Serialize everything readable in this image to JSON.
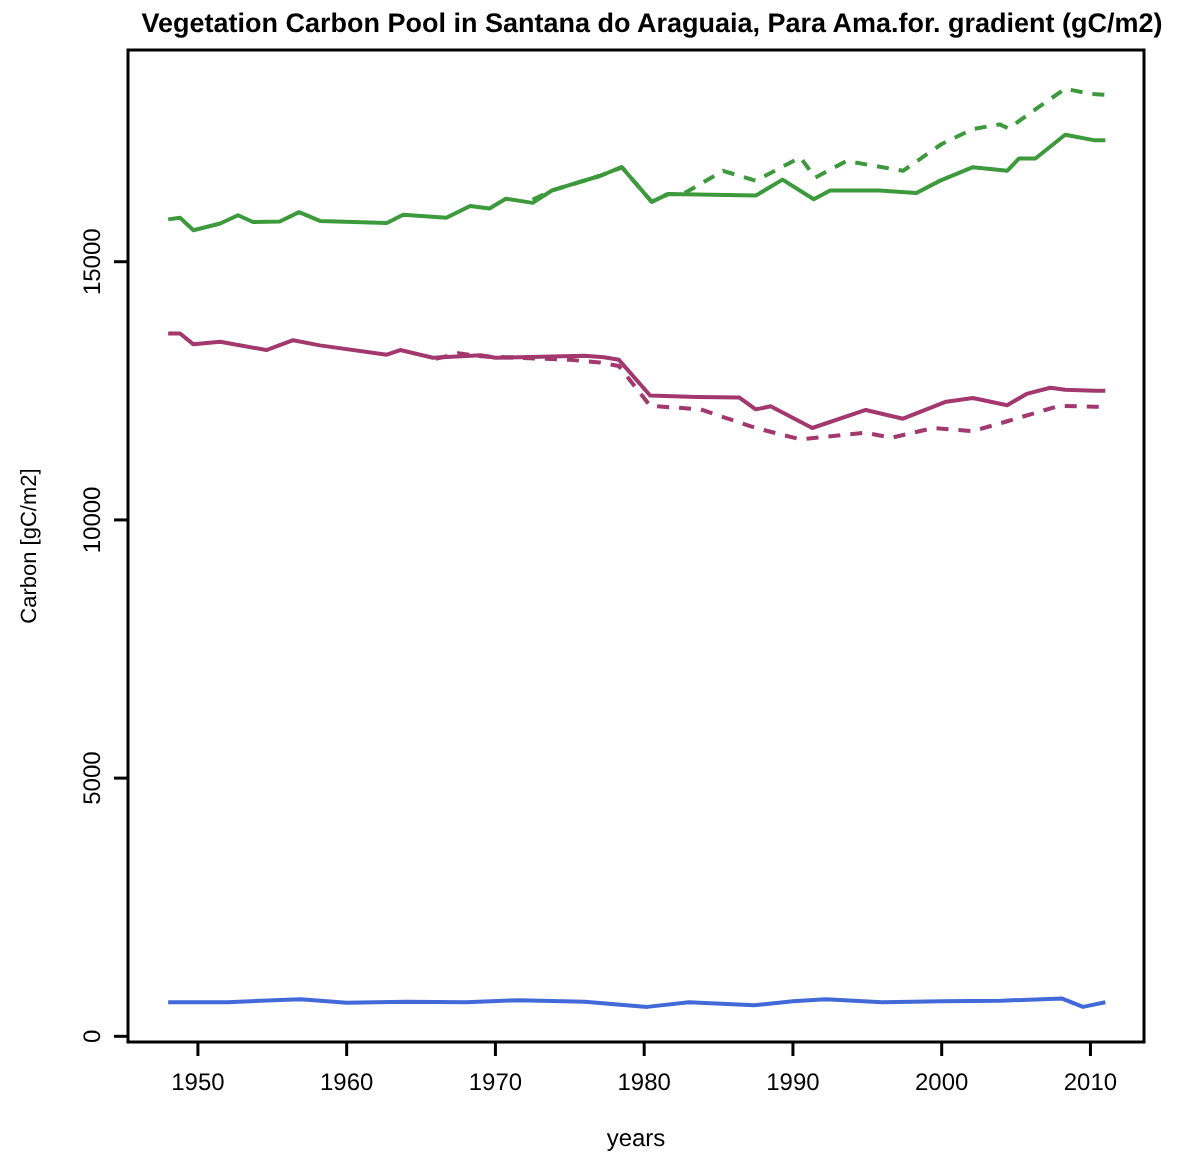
{
  "chart_data": {
    "type": "line",
    "title": "Vegetation Carbon Pool in Santana do Araguaia, Para Ama.for. gradient (gC/m2)",
    "xlabel": "years",
    "ylabel": "Carbon [gC/m2]",
    "xlim": [
      1945.3,
      2013.6
    ],
    "ylim": [
      -110,
      19100
    ],
    "xticks": [
      1950,
      1960,
      1970,
      1980,
      1990,
      2000,
      2010
    ],
    "yticks": [
      0,
      5000,
      10000,
      15000
    ],
    "grid": false,
    "series": [
      {
        "color": "#3c9a3c",
        "line_style": "solid",
        "x": [
          1948,
          1948.8,
          1949.7,
          1951.5,
          1952.7,
          1953.7,
          1955.5,
          1956.8,
          1958.2,
          1962.7,
          1963.8,
          1966.7,
          1968.3,
          1969.6,
          1970.7,
          1972.5,
          1973.8,
          1977,
          1978.5,
          1980.5,
          1981.6,
          1987.5,
          1989.3,
          1991.4,
          1992.5,
          1995.8,
          1998.3,
          1999.9,
          2002.1,
          2004.4,
          2005.2,
          2006.3,
          2008.3,
          2010.3,
          2011
        ],
        "values": [
          15820,
          15850,
          15610,
          15740,
          15900,
          15770,
          15780,
          15960,
          15790,
          15750,
          15910,
          15850,
          16080,
          16030,
          16220,
          16140,
          16380,
          16660,
          16830,
          16160,
          16310,
          16280,
          16590,
          16210,
          16380,
          16380,
          16330,
          16570,
          16830,
          16760,
          17000,
          17000,
          17460,
          17350,
          17350
        ]
      },
      {
        "color": "#3c9a3c",
        "line_style": "dashed",
        "x": [
          1972.5,
          1973.8,
          1977,
          1978.5,
          1980.5,
          1981.6,
          1982.6,
          1985.3,
          1987.5,
          1990.5,
          1991.5,
          1993.6,
          1997.4,
          2000,
          2002.1,
          2003.9,
          2004.5,
          2006.3,
          2008.3,
          2010,
          2011
        ],
        "values": [
          16200,
          16380,
          16660,
          16830,
          16160,
          16310,
          16310,
          16760,
          16570,
          17020,
          16630,
          16950,
          16760,
          17280,
          17570,
          17660,
          17580,
          17950,
          18350,
          18250,
          18230
        ]
      },
      {
        "color": "#a3386f",
        "line_style": "solid",
        "x": [
          1948,
          1948.8,
          1949.7,
          1951.5,
          1954.6,
          1956.4,
          1958.2,
          1962.7,
          1963.6,
          1965.8,
          1969,
          1970,
          1976,
          1977.3,
          1978.3,
          1980.4,
          1983.5,
          1986.4,
          1987.5,
          1988.5,
          1991.3,
          1994.9,
          1997.4,
          2000.3,
          2002.1,
          2004.4,
          2005.7,
          2007.3,
          2008.3,
          2010.3,
          2011
        ],
        "values": [
          13610,
          13610,
          13400,
          13450,
          13290,
          13480,
          13380,
          13200,
          13290,
          13140,
          13190,
          13140,
          13180,
          13150,
          13100,
          12410,
          12380,
          12370,
          12140,
          12200,
          11780,
          12130,
          11960,
          12290,
          12360,
          12220,
          12440,
          12560,
          12520,
          12500,
          12500
        ]
      },
      {
        "color": "#a3386f",
        "line_style": "dashed",
        "x": [
          1966,
          1967.5,
          1969,
          1975,
          1977,
          1978.3,
          1980.4,
          1983.8,
          1987.5,
          1990.5,
          1994.9,
          1996.6,
          1999.4,
          2002.1,
          2004.4,
          2007.9,
          2010.3,
          2011
        ],
        "values": [
          13120,
          13230,
          13170,
          13100,
          13050,
          12980,
          12210,
          12140,
          11780,
          11560,
          11690,
          11590,
          11780,
          11720,
          11910,
          12210,
          12190,
          12190
        ]
      },
      {
        "color": "#4169d8",
        "line_style": "solid",
        "x": [
          1948,
          1952,
          1956.9,
          1960,
          1964,
          1968,
          1971.6,
          1976,
          1980.2,
          1983,
          1987.4,
          1990,
          1992.2,
          1996,
          2000,
          2004,
          2008.1,
          2009.5,
          2011
        ],
        "values": [
          660,
          660,
          720,
          650,
          670,
          660,
          700,
          670,
          570,
          660,
          600,
          680,
          720,
          660,
          680,
          690,
          730,
          570,
          660
        ]
      }
    ]
  }
}
